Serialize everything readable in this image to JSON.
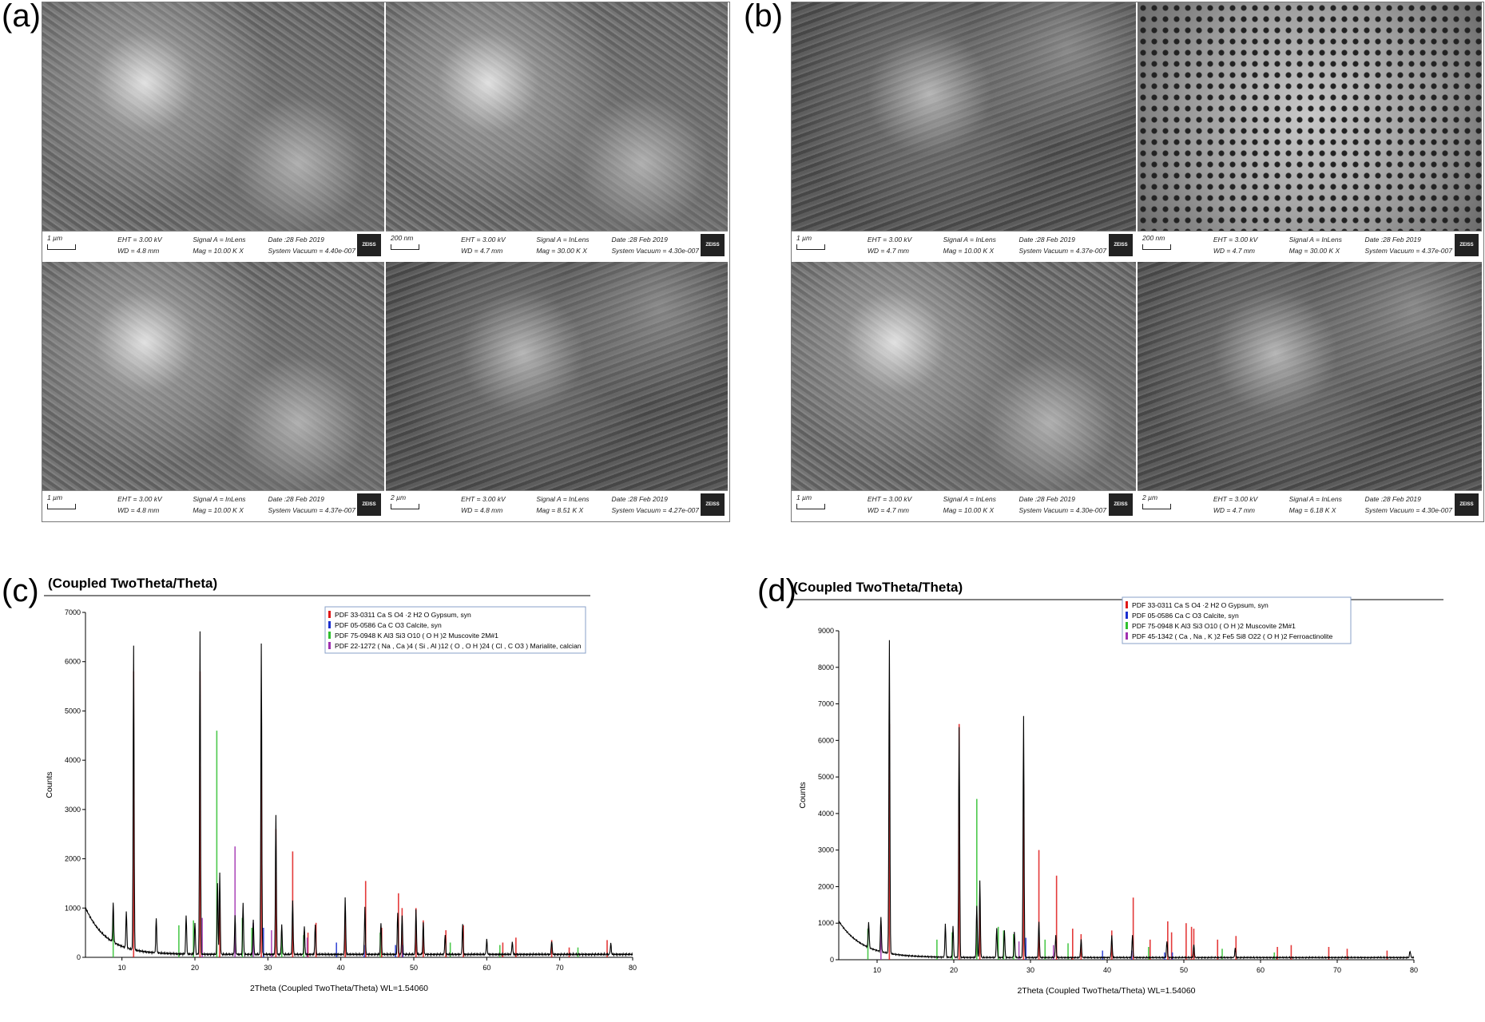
{
  "panels": {
    "a": "(a)",
    "b": "(b)",
    "c": "(c)",
    "d": "(d)"
  },
  "sem_a": [
    {
      "scale": "1 µm",
      "eht": "EHT =  3.00 kV",
      "wd": "WD =  4.8 mm",
      "signal": "Signal A = InLens",
      "mag": "Mag =  10.00 K X",
      "date": "Date :28 Feb 2019",
      "vac": "System Vacuum = 4.40e-007",
      "logo": "ZEISS"
    },
    {
      "scale": "200 nm",
      "eht": "EHT =  3.00 kV",
      "wd": "WD =  4.7 mm",
      "signal": "Signal A = InLens",
      "mag": "Mag =  30.00 K X",
      "date": "Date :28 Feb 2019",
      "vac": "System Vacuum = 4.30e-007",
      "logo": "ZEISS"
    },
    {
      "scale": "1 µm",
      "eht": "EHT =  3.00 kV",
      "wd": "WD =  4.8 mm",
      "signal": "Signal A = InLens",
      "mag": "Mag =  10.00 K X",
      "date": "Date :28 Feb 2019",
      "vac": "System Vacuum = 4.37e-007",
      "logo": "ZEISS"
    },
    {
      "scale": "2 µm",
      "eht": "EHT =  3.00 kV",
      "wd": "WD =  4.8 mm",
      "signal": "Signal A = InLens",
      "mag": "Mag =   8.51 K X",
      "date": "Date :28 Feb 2019",
      "vac": "System Vacuum = 4.27e-007",
      "logo": "ZEISS"
    }
  ],
  "sem_b": [
    {
      "scale": "1 µm",
      "eht": "EHT =  3.00 kV",
      "wd": "WD =  4.7 mm",
      "signal": "Signal A = InLens",
      "mag": "Mag =  10.00 K X",
      "date": "Date :28 Feb 2019",
      "vac": "System Vacuum = 4.37e-007",
      "logo": "ZEISS"
    },
    {
      "scale": "200 nm",
      "eht": "EHT =  3.00 kV",
      "wd": "WD =  4.7 mm",
      "signal": "Signal A = InLens",
      "mag": "Mag =  30.00 K X",
      "date": "Date :28 Feb 2019",
      "vac": "System Vacuum = 4.37e-007",
      "logo": "ZEISS"
    },
    {
      "scale": "1 µm",
      "eht": "EHT =  3.00 kV",
      "wd": "WD =  4.7 mm",
      "signal": "Signal A = InLens",
      "mag": "Mag =  10.00 K X",
      "date": "Date :28 Feb 2019",
      "vac": "System Vacuum = 4.30e-007",
      "logo": "ZEISS"
    },
    {
      "scale": "2 µm",
      "eht": "EHT =  3.00 kV",
      "wd": "WD =  4.7 mm",
      "signal": "Signal A = InLens",
      "mag": "Mag =   6.18 K X",
      "date": "Date :28 Feb 2019",
      "vac": "System Vacuum = 4.30e-007",
      "logo": "ZEISS"
    }
  ],
  "chart_data": [
    {
      "type": "line",
      "title": "(Coupled TwoTheta/Theta)",
      "xlabel": "2Theta (Coupled TwoTheta/Theta) WL=1.54060",
      "ylabel": "Counts",
      "xlim": [
        5,
        80
      ],
      "ylim": [
        0,
        7000
      ],
      "xticks": [
        10,
        20,
        30,
        40,
        50,
        60,
        70,
        80
      ],
      "yticks": [
        0,
        1000,
        2000,
        3000,
        4000,
        5000,
        6000,
        7000
      ],
      "legend_position": "top-right",
      "legend": [
        {
          "label": "PDF 33-0311 Ca S O4 ·2 H2 O Gypsum, syn",
          "color": "#e01818"
        },
        {
          "label": "PDF 05-0586 Ca C O3 Calcite, syn",
          "color": "#1a2fd0"
        },
        {
          "label": "PDF 75-0948 K Al3 Si3 O10 ( O H )2 Muscovite 2M#1",
          "color": "#2fc02f"
        },
        {
          "label": "PDF 22-1272 ( Na , Ca )4 ( Si , Al )12 ( O , O H )24 ( Cl , C O3 ) Marialite, calcian",
          "color": "#a030b0"
        }
      ],
      "background": {
        "start": 950,
        "decay": 0.35,
        "floor": 60
      },
      "peaks": [
        {
          "x": 8.8,
          "y": 800
        },
        {
          "x": 10.6,
          "y": 750
        },
        {
          "x": 11.6,
          "y": 6150
        },
        {
          "x": 14.7,
          "y": 700
        },
        {
          "x": 18.8,
          "y": 800
        },
        {
          "x": 20.0,
          "y": 650
        },
        {
          "x": 20.7,
          "y": 6550
        },
        {
          "x": 23.1,
          "y": 1450
        },
        {
          "x": 23.4,
          "y": 1650
        },
        {
          "x": 25.5,
          "y": 800
        },
        {
          "x": 26.6,
          "y": 1050
        },
        {
          "x": 28.0,
          "y": 700
        },
        {
          "x": 29.1,
          "y": 6300
        },
        {
          "x": 31.1,
          "y": 2850
        },
        {
          "x": 31.9,
          "y": 600
        },
        {
          "x": 33.4,
          "y": 1100
        },
        {
          "x": 35.0,
          "y": 550
        },
        {
          "x": 36.5,
          "y": 600
        },
        {
          "x": 40.6,
          "y": 1150
        },
        {
          "x": 43.3,
          "y": 950
        },
        {
          "x": 45.5,
          "y": 650
        },
        {
          "x": 47.8,
          "y": 850
        },
        {
          "x": 48.4,
          "y": 800
        },
        {
          "x": 50.3,
          "y": 900
        },
        {
          "x": 51.3,
          "y": 650
        },
        {
          "x": 54.3,
          "y": 400
        },
        {
          "x": 56.7,
          "y": 600
        },
        {
          "x": 60.0,
          "y": 300
        },
        {
          "x": 63.5,
          "y": 250
        },
        {
          "x": 68.9,
          "y": 280
        },
        {
          "x": 77.0,
          "y": 220
        }
      ],
      "reference_sticks": [
        {
          "color": "#e01818",
          "x": [
            11.6,
            20.7,
            23.4,
            29.1,
            31.1,
            33.4,
            35.5,
            36.6,
            40.6,
            43.4,
            45.6,
            47.9,
            48.4,
            50.3,
            51.3,
            54.4,
            56.8,
            62.2,
            64.0,
            68.9,
            71.3,
            76.5
          ],
          "y": [
            5800,
            5800,
            1300,
            4400,
            2600,
            2150,
            500,
            700,
            900,
            1550,
            600,
            1300,
            1000,
            1000,
            750,
            550,
            650,
            300,
            400,
            350,
            200,
            350
          ]
        },
        {
          "color": "#2fc02f",
          "x": [
            8.8,
            17.8,
            19.8,
            23.0,
            26.5,
            27.8,
            31.9,
            34.9,
            45.4,
            55.0,
            61.8,
            72.5
          ],
          "y": [
            800,
            650,
            750,
            4600,
            800,
            600,
            550,
            450,
            500,
            300,
            250,
            200
          ]
        },
        {
          "color": "#a030b0",
          "x": [
            21.0,
            25.5,
            28.0,
            30.5,
            35.4
          ],
          "y": [
            800,
            2250,
            700,
            550,
            400
          ]
        },
        {
          "color": "#1a2fd0",
          "x": [
            29.4,
            39.4,
            43.2,
            47.5,
            48.5
          ],
          "y": [
            600,
            300,
            250,
            250,
            250
          ]
        }
      ]
    },
    {
      "type": "line",
      "title": "(Coupled TwoTheta/Theta)",
      "xlabel": "2Theta (Coupled TwoTheta/Theta) WL=1.54060",
      "ylabel": "Counts",
      "xlim": [
        5,
        80
      ],
      "ylim": [
        0,
        9000
      ],
      "xticks": [
        10,
        20,
        30,
        40,
        50,
        60,
        70,
        80
      ],
      "yticks": [
        0,
        1000,
        2000,
        3000,
        4000,
        5000,
        6000,
        7000,
        8000,
        9000
      ],
      "legend_position": "top-right",
      "legend": [
        {
          "label": "PDF 33-0311 Ca S O4 ·2 H2 O Gypsum, syn",
          "color": "#e01818"
        },
        {
          "label": "PDF 05-0586 Ca C O3 Calcite, syn",
          "color": "#1a2fd0"
        },
        {
          "label": "PDF 75-0948 K Al3 Si3 O10 ( O H )2 Muscovite 2M#1",
          "color": "#2fc02f"
        },
        {
          "label": "PDF 45-1342 ( Ca , Na , K )2 Fe5 Si8 O22 ( O H )2 Ferroactinolite",
          "color": "#a030b0"
        }
      ],
      "background": {
        "start": 1000,
        "decay": 0.33,
        "floor": 60
      },
      "peaks": [
        {
          "x": 8.9,
          "y": 700
        },
        {
          "x": 10.5,
          "y": 950
        },
        {
          "x": 11.6,
          "y": 8550
        },
        {
          "x": 18.9,
          "y": 900
        },
        {
          "x": 19.9,
          "y": 850
        },
        {
          "x": 20.7,
          "y": 6300
        },
        {
          "x": 23.0,
          "y": 1400
        },
        {
          "x": 23.4,
          "y": 2100
        },
        {
          "x": 25.6,
          "y": 800
        },
        {
          "x": 26.6,
          "y": 750
        },
        {
          "x": 27.9,
          "y": 700
        },
        {
          "x": 29.1,
          "y": 6600
        },
        {
          "x": 31.1,
          "y": 1000
        },
        {
          "x": 33.3,
          "y": 600
        },
        {
          "x": 36.6,
          "y": 500
        },
        {
          "x": 40.6,
          "y": 600
        },
        {
          "x": 43.3,
          "y": 600
        },
        {
          "x": 47.8,
          "y": 450
        },
        {
          "x": 51.3,
          "y": 350
        },
        {
          "x": 56.7,
          "y": 250
        },
        {
          "x": 79.5,
          "y": 180
        }
      ],
      "reference_sticks": [
        {
          "color": "#e01818",
          "x": [
            11.6,
            20.7,
            23.4,
            29.1,
            31.1,
            33.4,
            35.5,
            36.6,
            40.6,
            43.4,
            45.6,
            47.9,
            48.4,
            50.3,
            51.0,
            51.3,
            54.4,
            56.8,
            62.2,
            64.0,
            68.9,
            71.3,
            76.5
          ],
          "y": [
            6450,
            6450,
            1500,
            4800,
            3000,
            2300,
            850,
            700,
            800,
            1700,
            550,
            1050,
            750,
            1000,
            900,
            850,
            550,
            650,
            350,
            400,
            350,
            300,
            250
          ]
        },
        {
          "color": "#2fc02f",
          "x": [
            8.8,
            17.8,
            19.8,
            23.0,
            25.8,
            26.5,
            27.8,
            31.9,
            34.9,
            45.4,
            55.0,
            61.8
          ],
          "y": [
            850,
            550,
            750,
            4400,
            900,
            800,
            700,
            550,
            450,
            350,
            300,
            200
          ]
        },
        {
          "color": "#a030b0",
          "x": [
            10.5,
            28.5,
            33.0
          ],
          "y": [
            900,
            500,
            400
          ]
        },
        {
          "color": "#1a2fd0",
          "x": [
            29.4,
            39.4,
            43.2,
            47.5,
            48.5
          ],
          "y": [
            600,
            250,
            250,
            200,
            200
          ]
        }
      ]
    }
  ]
}
